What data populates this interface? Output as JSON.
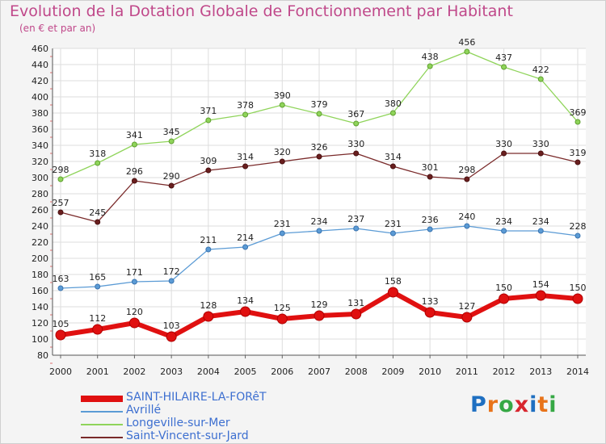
{
  "title": "Evolution de la Dotation Globale de Fonctionnement par Habitant",
  "subtitle": "(en € et par an)",
  "logo": {
    "text": "Proxiti",
    "letters": [
      "P",
      "r",
      "o",
      "x",
      "i",
      "t",
      "i"
    ],
    "colors": [
      "#1e6fc1",
      "#e8731a",
      "#36a845",
      "#d8262e",
      "#1e6fc1",
      "#e8731a",
      "#36a845"
    ]
  },
  "chart_data": {
    "type": "line",
    "title": "Evolution de la Dotation Globale de Fonctionnement par Habitant",
    "ylabel": "(en € et par an)",
    "x": [
      "2000",
      "2001",
      "2002",
      "2003",
      "2004",
      "2005",
      "2006",
      "2007",
      "2008",
      "2009",
      "2010",
      "2011",
      "2012",
      "2013",
      "2014"
    ],
    "ylim": [
      80,
      460
    ],
    "yticks": [
      80,
      100,
      120,
      140,
      160,
      180,
      200,
      220,
      240,
      260,
      280,
      300,
      320,
      340,
      360,
      380,
      400,
      420,
      440,
      460
    ],
    "series": [
      {
        "name": "SAINT-HILAIRE-LA-FORêT",
        "color": "#e01010",
        "values": [
          105,
          112,
          120,
          103,
          128,
          134,
          125,
          129,
          131,
          158,
          133,
          127,
          150,
          154,
          150
        ]
      },
      {
        "name": "Avrillé",
        "color": "#5b9bd5",
        "values": [
          163,
          165,
          171,
          172,
          211,
          214,
          231,
          234,
          237,
          231,
          236,
          240,
          234,
          234,
          228
        ]
      },
      {
        "name": "Longeville-sur-Mer",
        "color": "#8fd45a",
        "values": [
          298,
          318,
          341,
          345,
          371,
          378,
          390,
          379,
          367,
          380,
          438,
          456,
          437,
          422,
          369
        ]
      },
      {
        "name": "Saint-Vincent-sur-Jard",
        "color": "#7a2a2a",
        "values": [
          257,
          245,
          296,
          290,
          309,
          314,
          320,
          326,
          330,
          314,
          301,
          298,
          330,
          330,
          319
        ]
      }
    ],
    "legend_position": "bottom-left"
  }
}
